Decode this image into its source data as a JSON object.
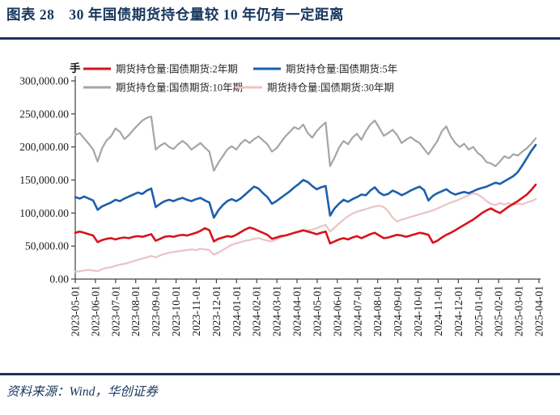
{
  "page": {
    "title": "图表 28　30 年国债期货持仓量较 10 年仍有一定距离",
    "source_note": "资料来源：Wind，华创证券",
    "accent_color": "#17375E"
  },
  "chart_data": {
    "type": "line",
    "unit_label": "手",
    "grid": false,
    "legend_position": "top",
    "ylim": [
      0,
      300000
    ],
    "y_ticks": [
      {
        "value": 300000,
        "label": "300,000.00"
      },
      {
        "value": 250000,
        "label": "250,000.00"
      },
      {
        "value": 200000,
        "label": "200,000.00"
      },
      {
        "value": 150000,
        "label": "150,000.00"
      },
      {
        "value": 100000,
        "label": "100,000.00"
      },
      {
        "value": 50000,
        "label": "50,000.00"
      },
      {
        "value": 0,
        "label": "0.00"
      }
    ],
    "x_tick_labels": [
      "2023-05-01",
      "2023-06-01",
      "2023-07-01",
      "2023-08-01",
      "2023-09-01",
      "2023-10-01",
      "2023-11-01",
      "2023-12-01",
      "2024-01-01",
      "2024-02-01",
      "2024-03-01",
      "2024-04-01",
      "2024-05-01",
      "2024-06-01",
      "2024-07-01",
      "2024-08-01",
      "2024-09-01",
      "2024-10-01",
      "2024-11-01",
      "2024-12-01",
      "2025-01-01",
      "2025-02-01",
      "2025-03-01",
      "2025-04-01"
    ],
    "axis_color": "#404040",
    "series": [
      {
        "id": "2yr",
        "name": "期货持仓量:国债期货:2年期",
        "color": "#D7141C",
        "values": [
          70000,
          72000,
          70000,
          68000,
          66000,
          56000,
          59000,
          61000,
          62000,
          60000,
          62000,
          63000,
          62000,
          64000,
          65000,
          64000,
          66000,
          68000,
          58000,
          61000,
          64000,
          65000,
          64000,
          66000,
          67000,
          66000,
          68000,
          70000,
          73000,
          77000,
          74000,
          57000,
          61000,
          63000,
          65000,
          64000,
          67000,
          71000,
          75000,
          78000,
          76000,
          73000,
          70000,
          67000,
          61000,
          63000,
          65000,
          66000,
          68000,
          70000,
          72000,
          74000,
          72000,
          70000,
          68000,
          70000,
          72000,
          54000,
          57000,
          60000,
          62000,
          60000,
          63000,
          65000,
          62000,
          65000,
          68000,
          70000,
          66000,
          62000,
          63000,
          65000,
          67000,
          66000,
          64000,
          66000,
          68000,
          70000,
          69000,
          67000,
          55000,
          58000,
          63000,
          67000,
          70000,
          74000,
          78000,
          82000,
          86000,
          90000,
          95000,
          100000,
          104000,
          107000,
          103000,
          100000,
          105000,
          110000,
          114000,
          118000,
          123000,
          128000,
          135000,
          143000
        ]
      },
      {
        "id": "5yr",
        "name": "期货持仓量:国债期货:5年",
        "color": "#1E5FAC",
        "values": [
          124000,
          122000,
          125000,
          122000,
          119000,
          105000,
          110000,
          113000,
          116000,
          120000,
          118000,
          122000,
          125000,
          128000,
          131000,
          129000,
          134000,
          137000,
          109000,
          114000,
          118000,
          120000,
          118000,
          121000,
          123000,
          120000,
          118000,
          121000,
          123000,
          119000,
          116000,
          93000,
          104000,
          112000,
          118000,
          121000,
          118000,
          122000,
          128000,
          134000,
          140000,
          137000,
          130000,
          124000,
          114000,
          118000,
          123000,
          128000,
          133000,
          139000,
          144000,
          150000,
          147000,
          141000,
          136000,
          139000,
          141000,
          96000,
          107000,
          114000,
          120000,
          117000,
          121000,
          124000,
          128000,
          127000,
          134000,
          139000,
          131000,
          127000,
          129000,
          134000,
          131000,
          127000,
          130000,
          134000,
          137000,
          140000,
          135000,
          119000,
          126000,
          130000,
          133000,
          136000,
          131000,
          128000,
          130000,
          132000,
          130000,
          133000,
          136000,
          138000,
          140000,
          143000,
          146000,
          144000,
          148000,
          152000,
          156000,
          162000,
          172000,
          183000,
          194000,
          203000
        ]
      },
      {
        "id": "10yr",
        "name": "期货持仓量:国债期货:10年期",
        "color": "#A5A5A5",
        "values": [
          218000,
          221000,
          213000,
          205000,
          196000,
          178000,
          198000,
          210000,
          216000,
          228000,
          223000,
          212000,
          218000,
          226000,
          233000,
          240000,
          244000,
          246000,
          196000,
          202000,
          206000,
          200000,
          197000,
          204000,
          209000,
          204000,
          196000,
          201000,
          206000,
          199000,
          193000,
          164000,
          176000,
          186000,
          196000,
          201000,
          196000,
          205000,
          211000,
          206000,
          212000,
          216000,
          210000,
          204000,
          193000,
          198000,
          207000,
          216000,
          223000,
          230000,
          227000,
          234000,
          221000,
          214000,
          224000,
          231000,
          237000,
          171000,
          184000,
          199000,
          209000,
          204000,
          214000,
          220000,
          211000,
          224000,
          234000,
          240000,
          229000,
          217000,
          221000,
          226000,
          218000,
          206000,
          211000,
          215000,
          210000,
          206000,
          197000,
          189000,
          199000,
          209000,
          224000,
          231000,
          216000,
          206000,
          200000,
          205000,
          196000,
          200000,
          191000,
          186000,
          177000,
          175000,
          171000,
          178000,
          186000,
          183000,
          189000,
          187000,
          193000,
          198000,
          205000,
          213000
        ]
      },
      {
        "id": "30yr",
        "name": "期货持仓量:国债期货:30年期",
        "color": "#EBC3C5",
        "values": [
          11000,
          12000,
          13000,
          14000,
          13000,
          12000,
          15000,
          17000,
          18000,
          20000,
          22000,
          23000,
          25000,
          27000,
          29000,
          31000,
          33000,
          35000,
          33000,
          36000,
          38000,
          40000,
          41000,
          42000,
          43000,
          44000,
          45000,
          44000,
          46000,
          45000,
          44000,
          37000,
          40000,
          44000,
          48000,
          52000,
          54000,
          56000,
          58000,
          59000,
          61000,
          62000,
          60000,
          58000,
          57000,
          60000,
          63000,
          66000,
          68000,
          70000,
          71000,
          73000,
          74000,
          75000,
          77000,
          80000,
          82000,
          72000,
          78000,
          84000,
          90000,
          95000,
          99000,
          102000,
          104000,
          106000,
          108000,
          110000,
          111000,
          109000,
          103000,
          93000,
          87000,
          90000,
          92000,
          94000,
          96000,
          98000,
          100000,
          102000,
          104000,
          107000,
          110000,
          113000,
          116000,
          118000,
          121000,
          124000,
          127000,
          130000,
          128000,
          124000,
          118000,
          114000,
          112000,
          115000,
          113000,
          115000,
          112000,
          114000,
          113000,
          116000,
          118000,
          121000
        ]
      }
    ]
  }
}
